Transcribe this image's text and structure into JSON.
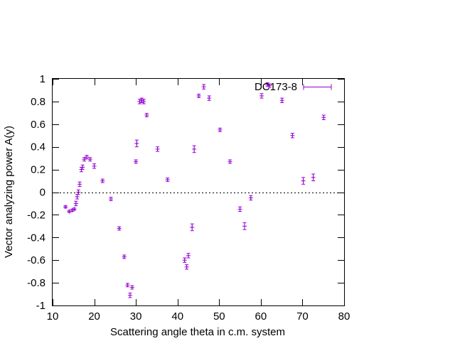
{
  "chart_data": {
    "type": "scatter",
    "xlabel": "Scattering angle theta in c.m. system",
    "ylabel": "Vector analyzing power A(y)",
    "xlim": [
      10,
      80
    ],
    "ylim": [
      -1,
      1
    ],
    "xticks": [
      10,
      20,
      30,
      40,
      50,
      60,
      70,
      80
    ],
    "yticks": [
      -1,
      -0.8,
      -0.6,
      -0.4,
      -0.2,
      0,
      0.2,
      0.4,
      0.6,
      0.8,
      1
    ],
    "ytick_labels": [
      "-1",
      "-0.8",
      "-0.6",
      "-0.4",
      "-0.2",
      "0",
      "0.2",
      "0.4",
      "0.6",
      "0.8",
      "1"
    ],
    "grid": false,
    "zero_line": true,
    "legend_position": "top-right",
    "series": [
      {
        "name": "DC173-8",
        "color": "#9400d3",
        "points": [
          {
            "x": 13.1,
            "y": -0.13,
            "err": 0.01
          },
          {
            "x": 14.0,
            "y": -0.17,
            "err": 0.01
          },
          {
            "x": 14.7,
            "y": -0.16,
            "err": 0.01
          },
          {
            "x": 15.2,
            "y": -0.15,
            "err": 0.01
          },
          {
            "x": 15.6,
            "y": -0.1,
            "err": 0.02
          },
          {
            "x": 15.9,
            "y": -0.04,
            "err": 0.02
          },
          {
            "x": 16.2,
            "y": 0.0,
            "err": 0.02
          },
          {
            "x": 16.5,
            "y": 0.07,
            "err": 0.02
          },
          {
            "x": 16.9,
            "y": 0.2,
            "err": 0.02
          },
          {
            "x": 17.2,
            "y": 0.22,
            "err": 0.02
          },
          {
            "x": 17.6,
            "y": 0.29,
            "err": 0.015
          },
          {
            "x": 18.2,
            "y": 0.31,
            "err": 0.015
          },
          {
            "x": 19.0,
            "y": 0.29,
            "err": 0.015
          },
          {
            "x": 20.0,
            "y": 0.23,
            "err": 0.02
          },
          {
            "x": 22.0,
            "y": 0.1,
            "err": 0.015
          },
          {
            "x": 24.0,
            "y": -0.06,
            "err": 0.015
          },
          {
            "x": 26.0,
            "y": -0.32,
            "err": 0.015
          },
          {
            "x": 27.2,
            "y": -0.57,
            "err": 0.015
          },
          {
            "x": 28.0,
            "y": -0.82,
            "err": 0.015
          },
          {
            "x": 28.6,
            "y": -0.91,
            "err": 0.02
          },
          {
            "x": 29.1,
            "y": -0.84,
            "err": 0.015
          },
          {
            "x": 30.0,
            "y": 0.27,
            "err": 0.015
          },
          {
            "x": 30.2,
            "y": 0.43,
            "err": 0.03
          },
          {
            "x": 30.9,
            "y": 0.8,
            "err": 0.02
          },
          {
            "x": 31.4,
            "y": 0.81,
            "err": 0.02
          },
          {
            "x": 31.9,
            "y": 0.8,
            "err": 0.02
          },
          {
            "x": 32.6,
            "y": 0.68,
            "err": 0.015
          },
          {
            "x": 35.2,
            "y": 0.38,
            "err": 0.02
          },
          {
            "x": 37.6,
            "y": 0.11,
            "err": 0.015
          },
          {
            "x": 41.7,
            "y": -0.6,
            "err": 0.02
          },
          {
            "x": 42.2,
            "y": -0.66,
            "err": 0.02
          },
          {
            "x": 42.6,
            "y": -0.56,
            "err": 0.02
          },
          {
            "x": 43.5,
            "y": -0.31,
            "err": 0.03
          },
          {
            "x": 44.0,
            "y": 0.38,
            "err": 0.03
          },
          {
            "x": 45.1,
            "y": 0.85,
            "err": 0.015
          },
          {
            "x": 46.3,
            "y": 0.93,
            "err": 0.02
          },
          {
            "x": 47.6,
            "y": 0.83,
            "err": 0.02
          },
          {
            "x": 50.2,
            "y": 0.55,
            "err": 0.015
          },
          {
            "x": 52.6,
            "y": 0.27,
            "err": 0.015
          },
          {
            "x": 55.0,
            "y": -0.15,
            "err": 0.02
          },
          {
            "x": 56.1,
            "y": -0.3,
            "err": 0.03
          },
          {
            "x": 57.6,
            "y": -0.05,
            "err": 0.02
          },
          {
            "x": 60.2,
            "y": 0.85,
            "err": 0.02
          },
          {
            "x": 61.6,
            "y": 0.95,
            "err": 0.015
          },
          {
            "x": 62.1,
            "y": 0.94,
            "err": 0.015
          },
          {
            "x": 65.1,
            "y": 0.81,
            "err": 0.02
          },
          {
            "x": 67.6,
            "y": 0.5,
            "err": 0.02
          },
          {
            "x": 70.2,
            "y": 0.1,
            "err": 0.03
          },
          {
            "x": 72.6,
            "y": 0.13,
            "err": 0.03
          },
          {
            "x": 75.1,
            "y": 0.66,
            "err": 0.02
          }
        ]
      }
    ]
  }
}
